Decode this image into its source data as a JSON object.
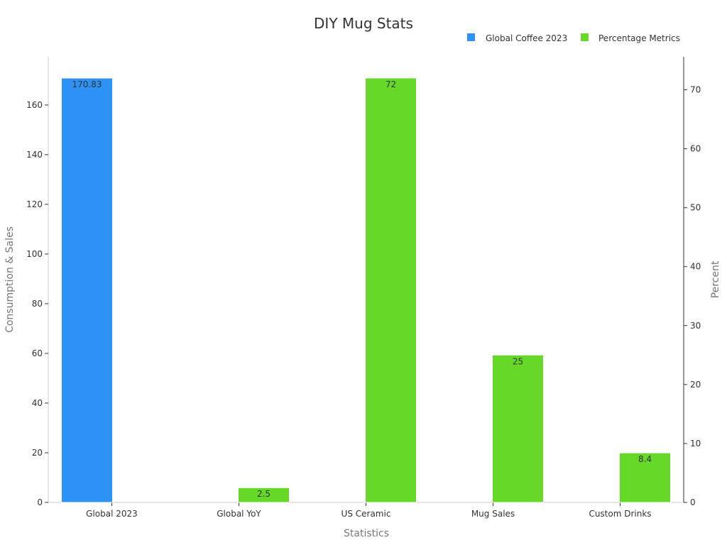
{
  "chart_data": {
    "type": "bar",
    "title": "DIY Mug Stats",
    "xlabel": "Statistics",
    "ylabel": "Consumption & Sales",
    "y2label": "Percent",
    "categories": [
      "Global 2023",
      "Global YoY",
      "US Ceramic",
      "Mug Sales",
      "Custom Drinks"
    ],
    "series": [
      {
        "name": "Global Coffee 2023",
        "axis": "left",
        "color": "#2e91f5",
        "values": [
          170.83,
          null,
          null,
          null,
          null
        ],
        "labels": [
          "170.83",
          "",
          "",
          "",
          ""
        ]
      },
      {
        "name": "Percentage Metrics",
        "axis": "right",
        "color": "#66d928",
        "values": [
          null,
          2.5,
          72,
          25,
          8.4
        ],
        "labels": [
          "",
          "2.5",
          "72",
          "25",
          "8.4"
        ]
      }
    ],
    "ylim": [
      0,
      179.4
    ],
    "y2lim": [
      0,
      75.6
    ],
    "yticks": [
      0,
      20,
      40,
      60,
      80,
      100,
      120,
      140,
      160
    ],
    "y2ticks": [
      0,
      10,
      20,
      30,
      40,
      50,
      60,
      70
    ],
    "legend_position": "top-right",
    "grid": false
  }
}
